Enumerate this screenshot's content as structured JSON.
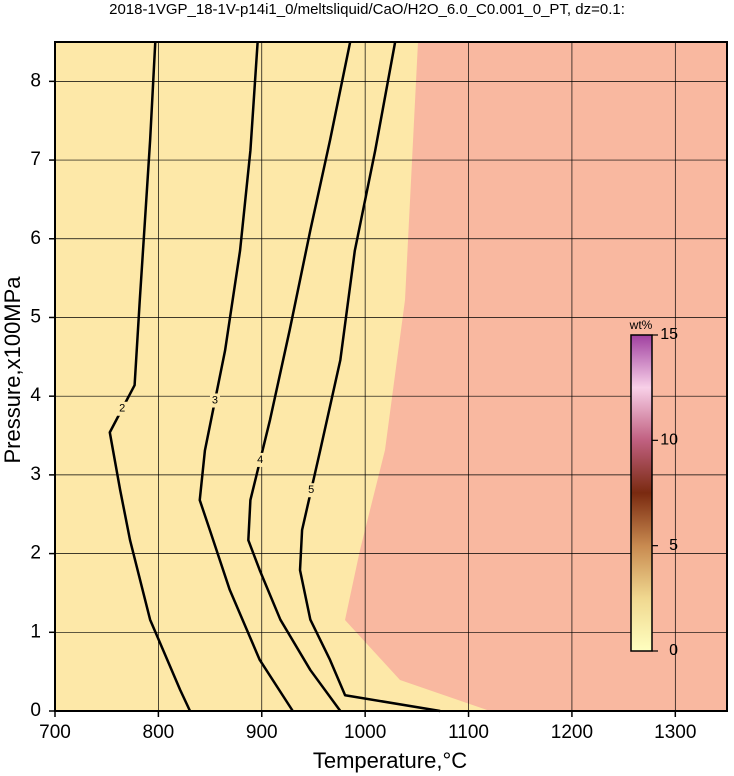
{
  "chart_data": {
    "type": "contour",
    "title": "2018-1VGP_18-1V-p14i1_0/meltsliquid/CaO/H2O_6.0_C0.001_0_PT, dz=0.1:",
    "x_label": "Temperature,°C",
    "y_label": "Pressure,x100MPa",
    "xlim": [
      700,
      1350
    ],
    "ylim": [
      0,
      8.5
    ],
    "xticks": [
      700,
      800,
      900,
      1000,
      1100,
      1200,
      1300
    ],
    "yticks": [
      0,
      1,
      2,
      3,
      4,
      5,
      6,
      7,
      8
    ],
    "grid": true,
    "line_color": "#000000",
    "contours": [
      {
        "level": 2,
        "x": [
          830.6,
          821,
          792,
          772.6,
          763,
          753,
          777,
          782,
          787,
          792,
          797
        ],
        "y": [
          0,
          0.27,
          1.16,
          2.17,
          2.81,
          3.54,
          4.14,
          5.22,
          6.23,
          7.25,
          8.5
        ]
      },
      {
        "level": 3,
        "x": [
          930,
          898,
          869,
          850,
          840,
          845,
          864.5,
          879,
          889,
          896
        ],
        "y": [
          0,
          0.65,
          1.54,
          2.29,
          2.68,
          3.31,
          4.58,
          5.85,
          7.12,
          8.5
        ]
      },
      {
        "level": 4,
        "x": [
          976,
          947,
          918,
          898,
          887,
          889,
          908,
          927,
          947,
          966,
          985.5
        ],
        "y": [
          0,
          0.52,
          1.16,
          1.79,
          2.17,
          2.68,
          3.7,
          4.84,
          6.11,
          7.25,
          8.5
        ]
      },
      {
        "level": 5,
        "x": [
          1072.6,
          980.6,
          966,
          947,
          937,
          939,
          956.5,
          976,
          990,
          1009.7,
          1029
        ],
        "y": [
          0,
          0.2,
          0.65,
          1.16,
          1.79,
          2.3,
          3.31,
          4.46,
          5.85,
          7.12,
          8.5
        ]
      }
    ],
    "colorbar": {
      "label": "wt%",
      "lim": [
        0,
        15
      ],
      "ticks": [
        0,
        5,
        10,
        15
      ],
      "colormap": [
        "#ffffc0",
        "#f0d890",
        "#c88a50",
        "#7a2a10",
        "#c06080",
        "#f8d0e8",
        "#a040a0"
      ]
    }
  }
}
